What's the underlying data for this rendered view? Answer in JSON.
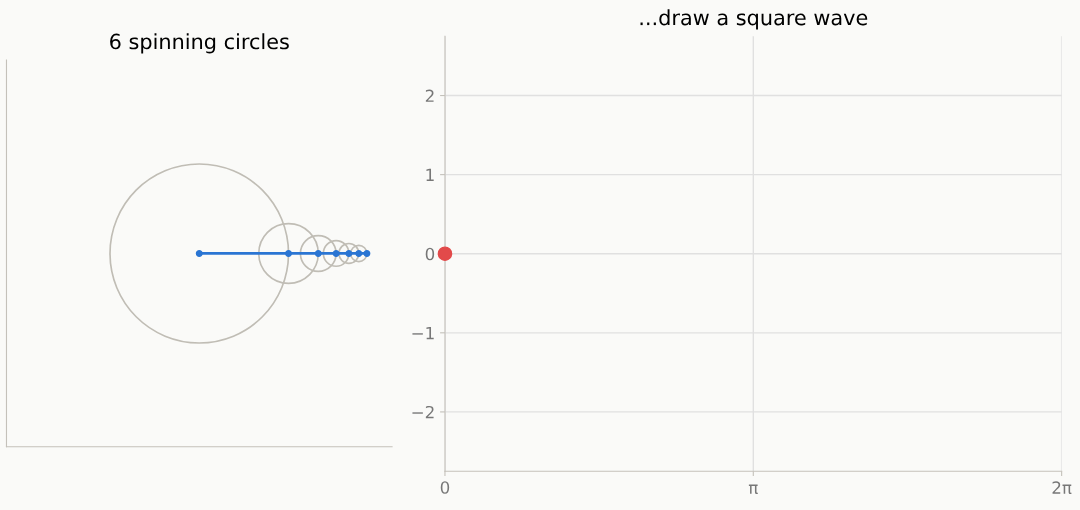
{
  "chart_data": [
    {
      "type": "other",
      "title": "6 spinning circles"
    },
    {
      "type": "scatter",
      "title": "...draw a square wave",
      "series": [
        {
          "color": "#e24a4a",
          "x": [
            0
          ],
          "values": [
            0
          ]
        }
      ],
      "xlim": [
        0,
        6.2832
      ],
      "xticks": [
        0,
        {
          "value": 3.1416,
          "label": "π"
        },
        {
          "value": 6.2832,
          "label": "2π"
        }
      ],
      "ylim": [
        -2.75,
        2.75
      ],
      "yticks": [
        {
          "value": -2,
          "label": "−2"
        },
        {
          "value": -1,
          "label": "−1"
        },
        0,
        1,
        2
      ],
      "grid": true,
      "marker": "circle"
    }
  ]
}
